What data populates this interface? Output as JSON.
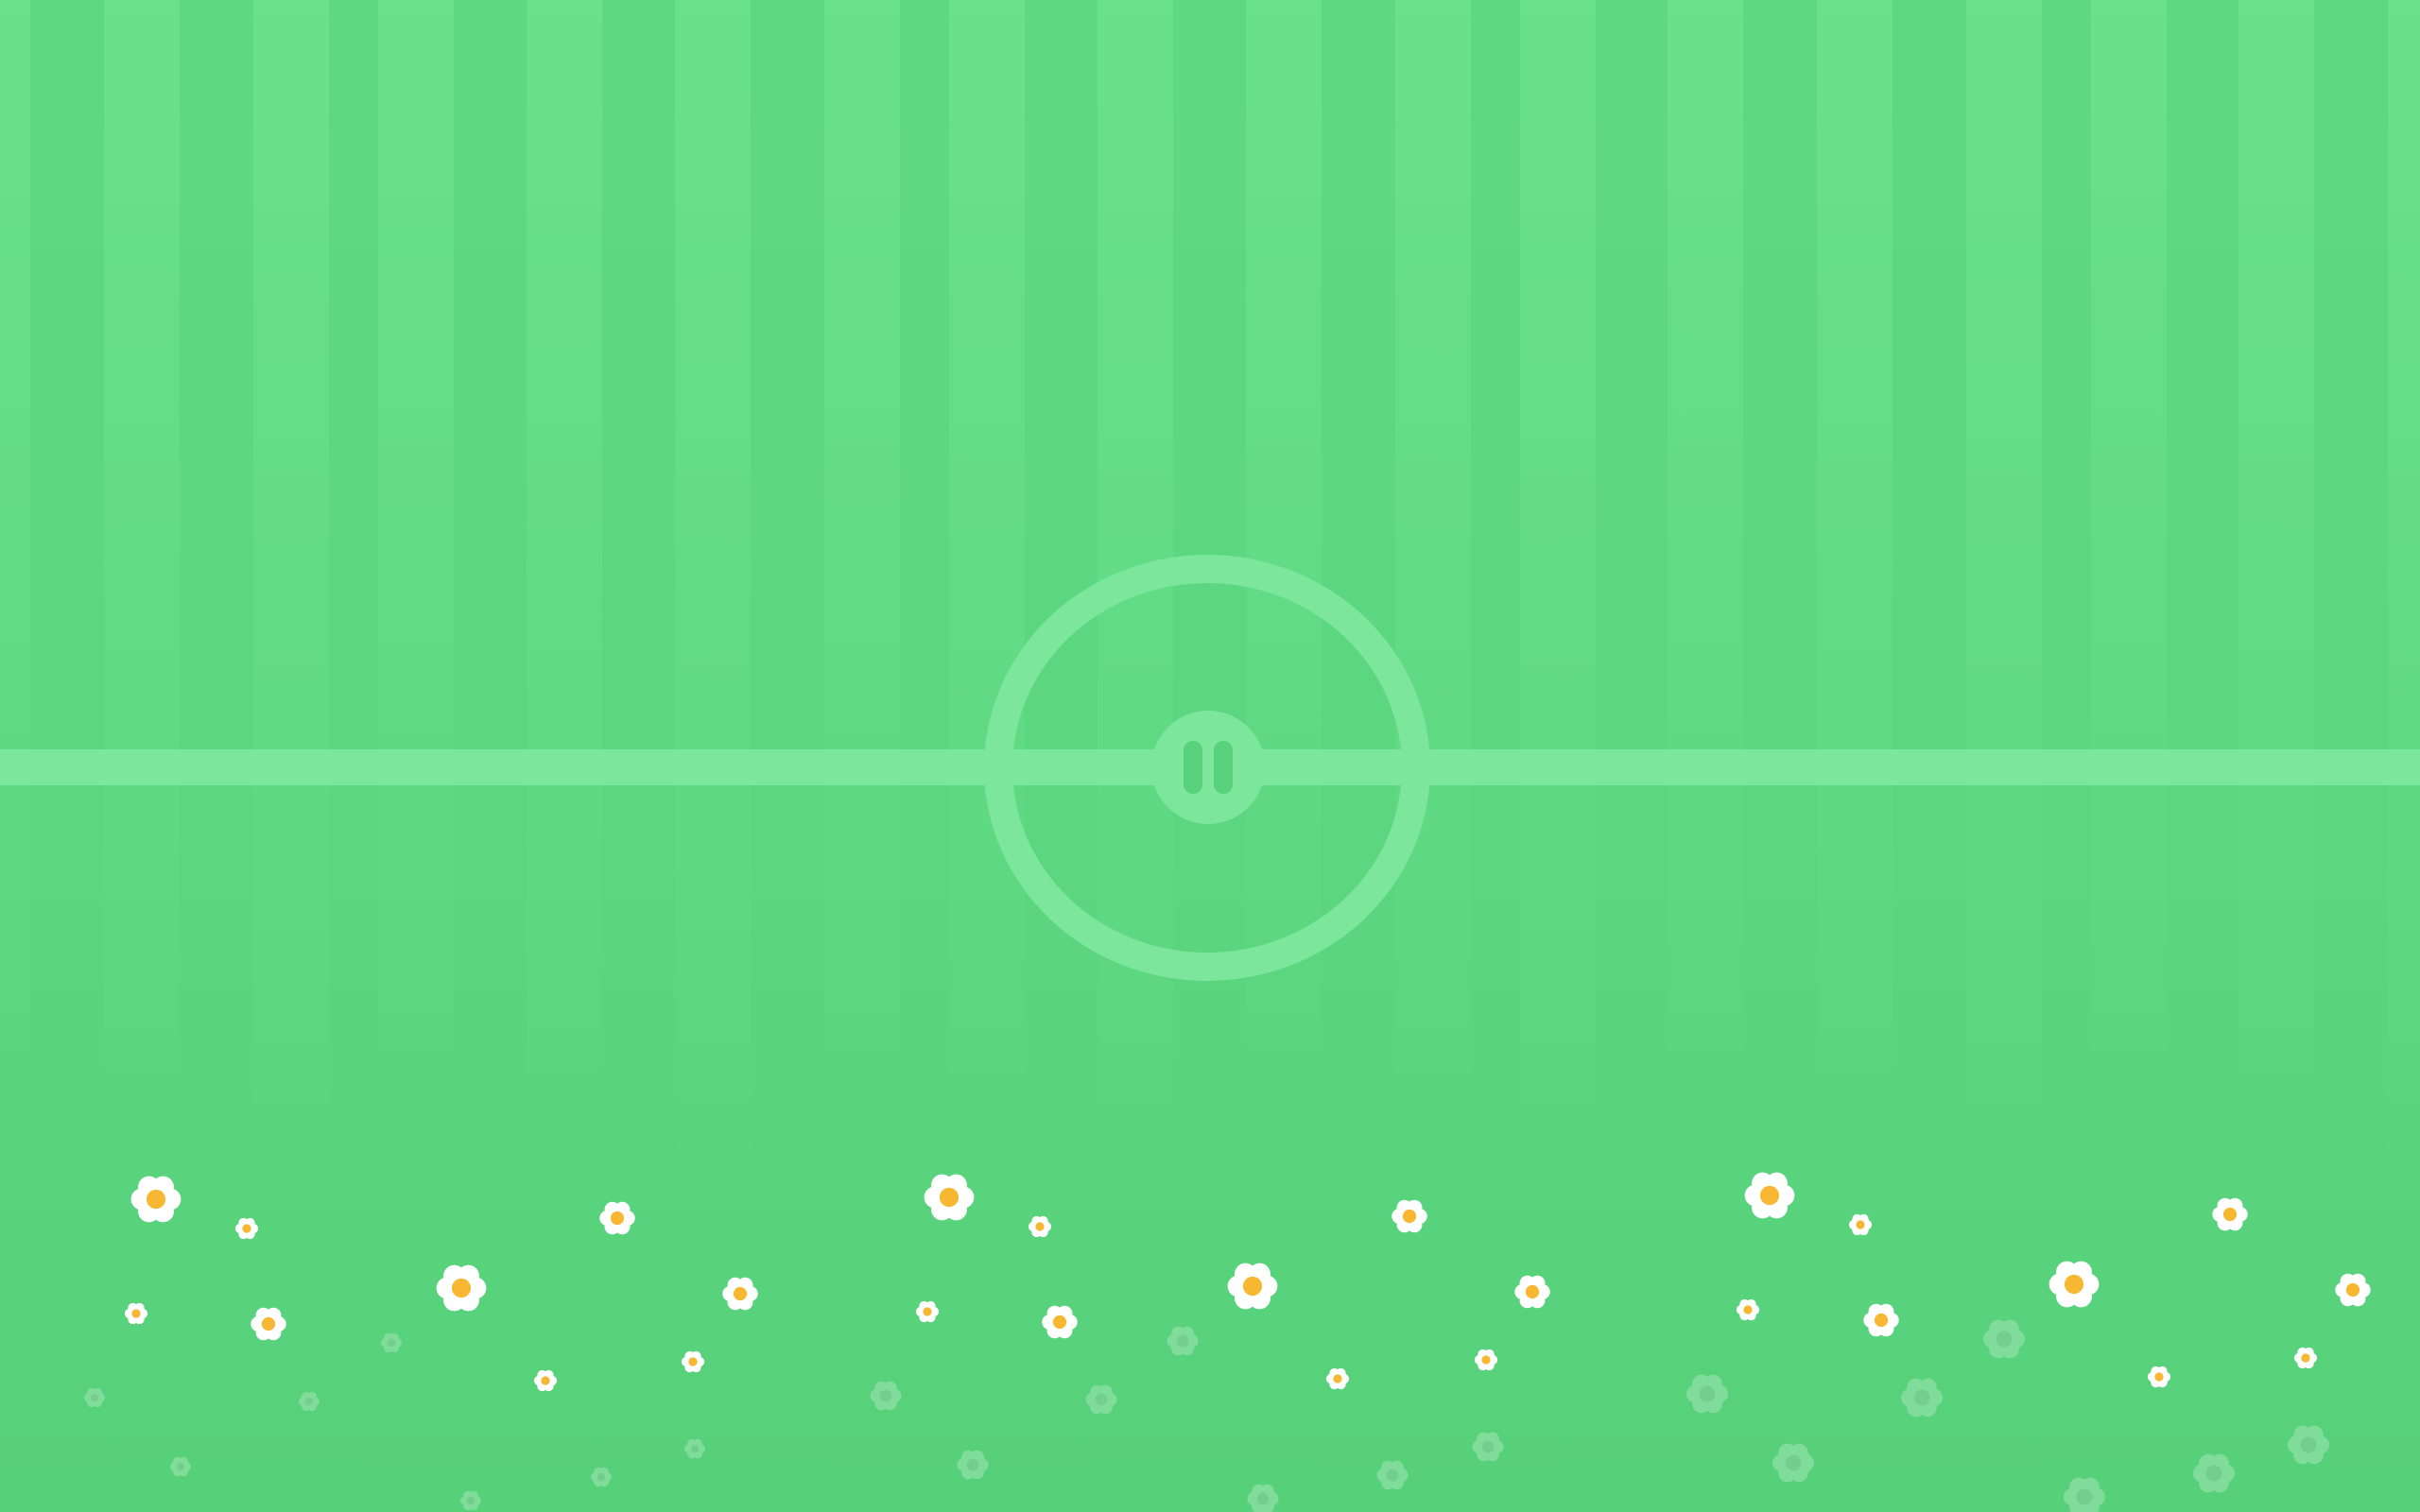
{
  "field": {
    "grass_color": "#58d27c",
    "stripe_color": "#6be08e",
    "line_color": "#7be69c"
  },
  "controls": {
    "pause_icon": "pause-icon"
  },
  "decor": {
    "flower_petal_color": "#ffffff",
    "flower_center_color": "#f7b733",
    "faded_flower_color": "#8ee0a6"
  }
}
